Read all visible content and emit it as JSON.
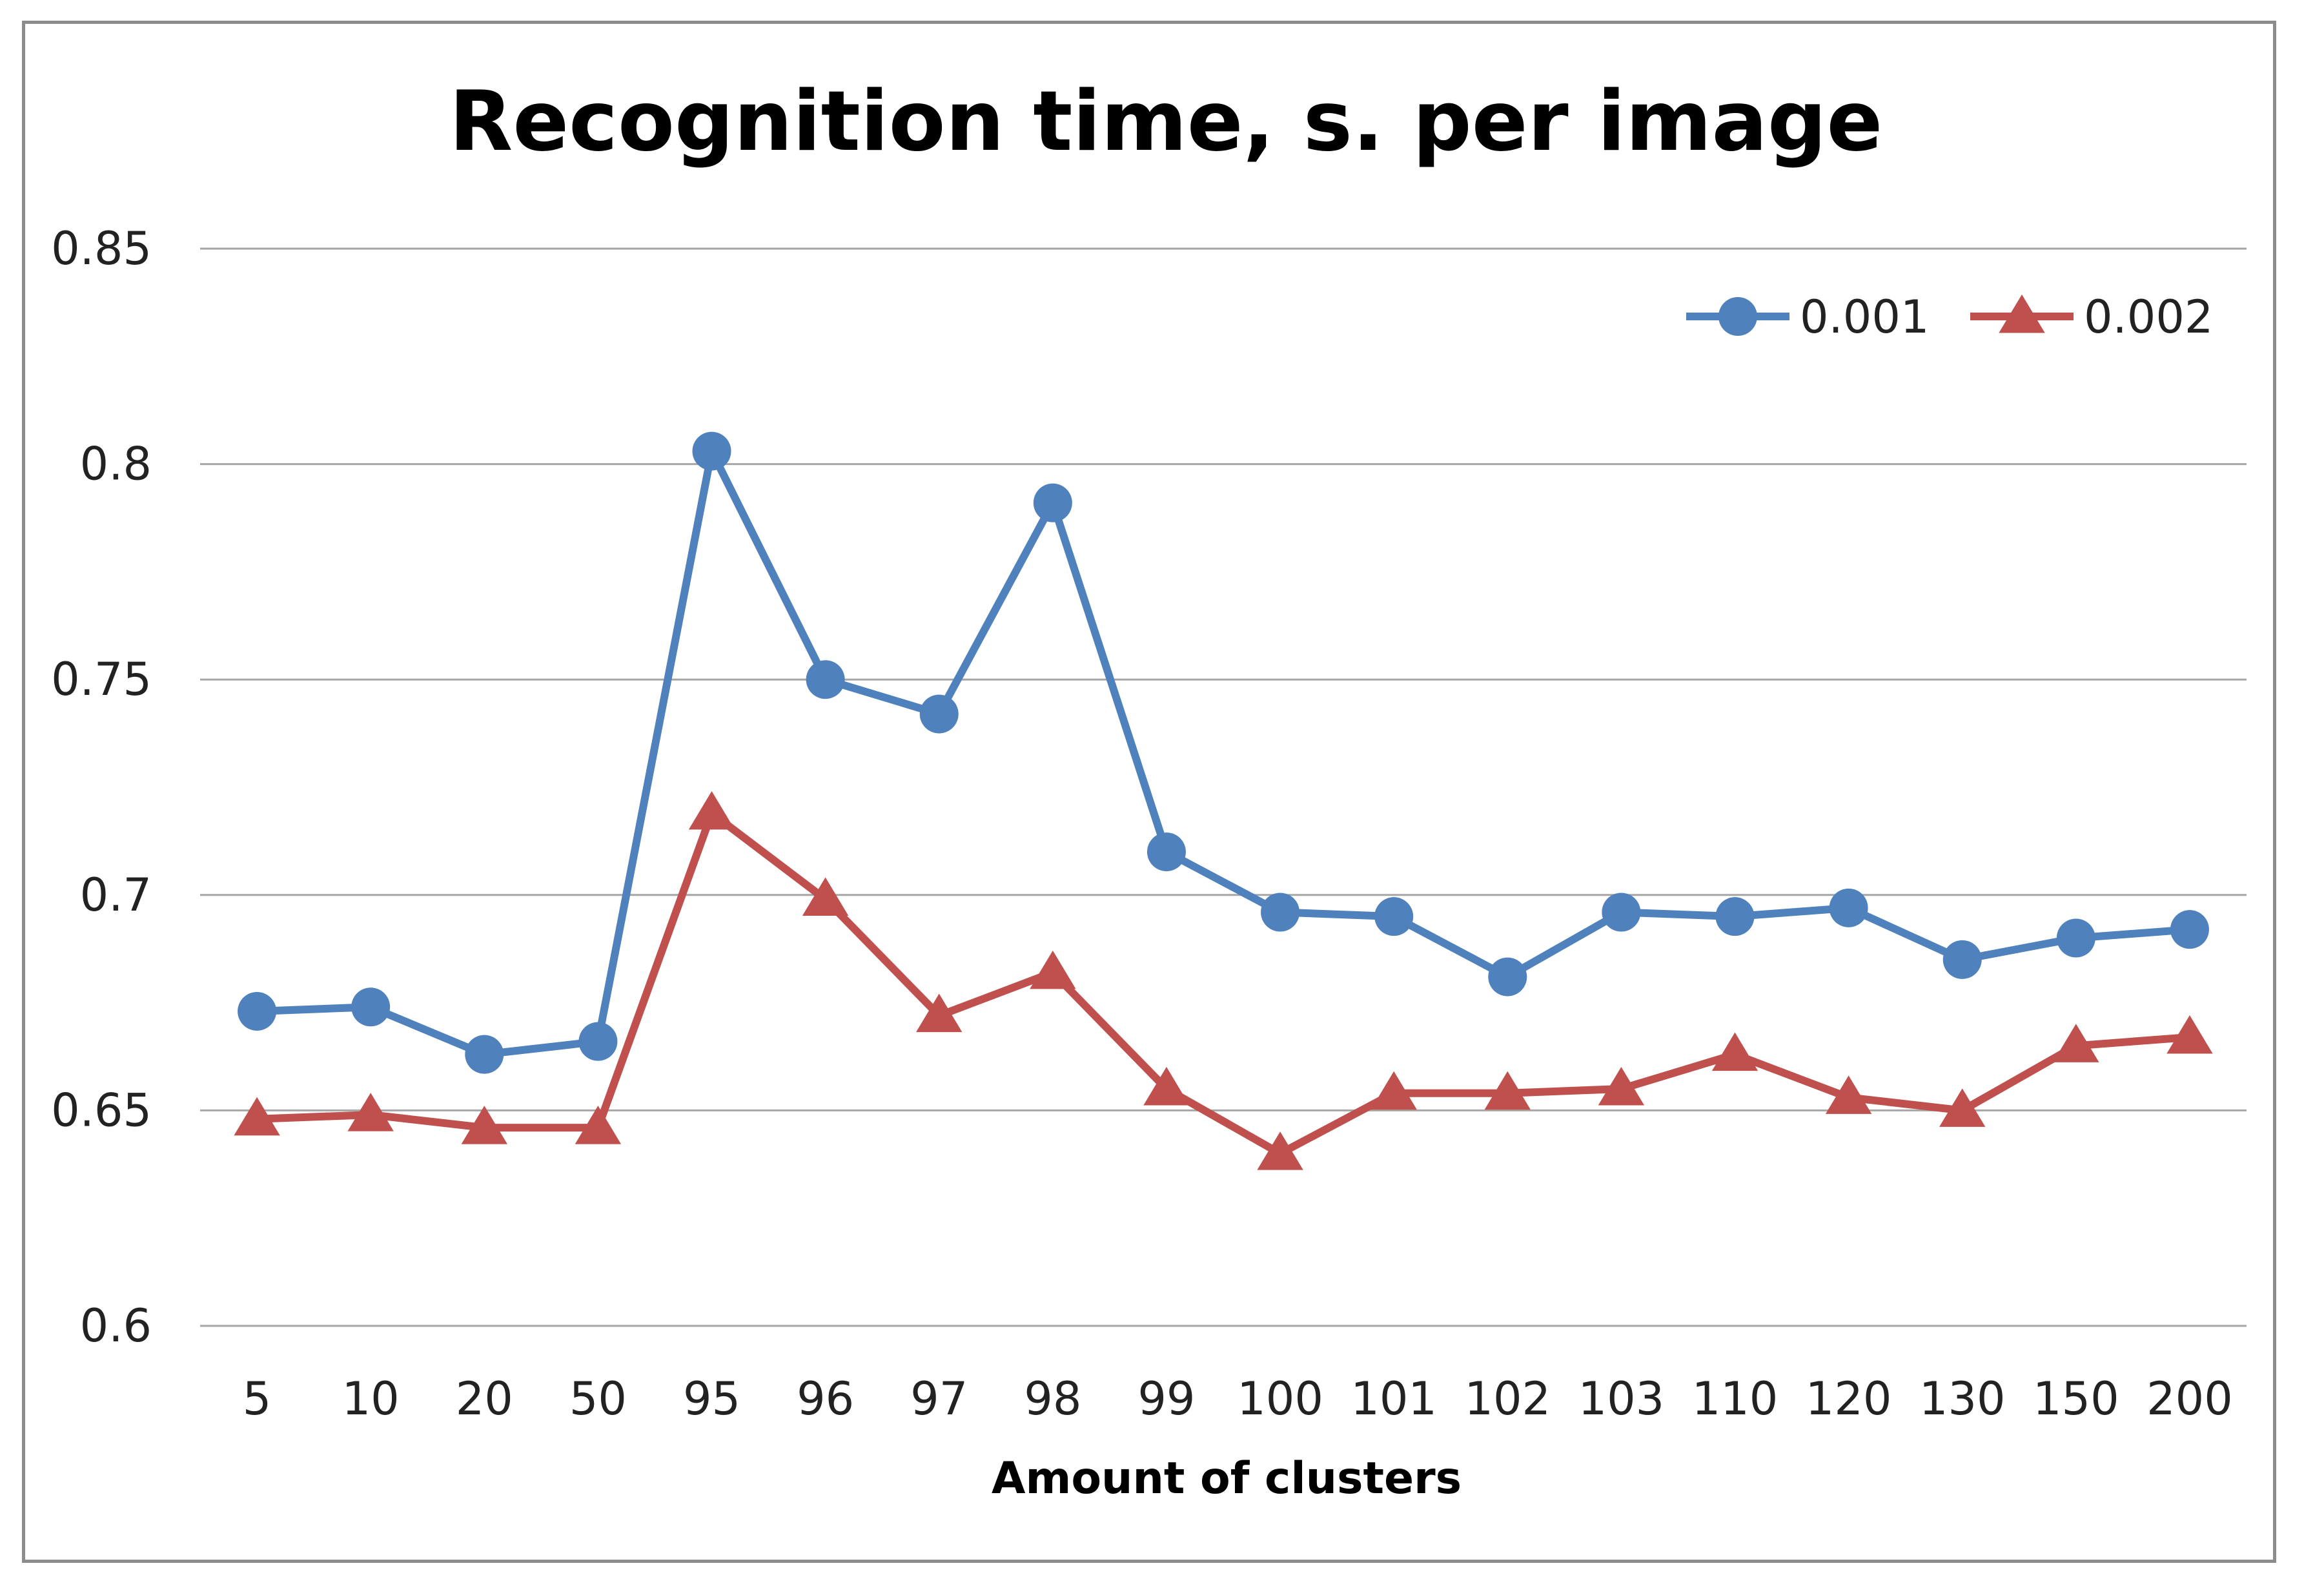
{
  "chart_data": {
    "type": "line",
    "title": "Recognition time, s. per image",
    "xlabel": "Amount of clusters",
    "ylabel": "",
    "categories": [
      "5",
      "10",
      "20",
      "50",
      "95",
      "96",
      "97",
      "98",
      "99",
      "100",
      "101",
      "102",
      "103",
      "110",
      "120",
      "130",
      "150",
      "200"
    ],
    "ylim": [
      0.6,
      0.85
    ],
    "yticks": [
      "0.6",
      "0.65",
      "0.7",
      "0.75",
      "0.8",
      "0.85"
    ],
    "grid": true,
    "legend_position": "top-right",
    "series": [
      {
        "name": "0.001",
        "color": "#4f81bd",
        "marker": "circle",
        "values": [
          0.673,
          0.674,
          0.663,
          0.666,
          0.803,
          0.75,
          0.742,
          0.791,
          0.71,
          0.696,
          0.695,
          0.681,
          0.696,
          0.695,
          0.697,
          0.685,
          0.69,
          0.692
        ]
      },
      {
        "name": "0.002",
        "color": "#c0504d",
        "marker": "triangle",
        "values": [
          0.648,
          0.649,
          0.646,
          0.646,
          0.719,
          0.699,
          0.672,
          0.682,
          0.655,
          0.64,
          0.654,
          0.654,
          0.655,
          0.663,
          0.653,
          0.65,
          0.665,
          0.667
        ]
      }
    ]
  }
}
